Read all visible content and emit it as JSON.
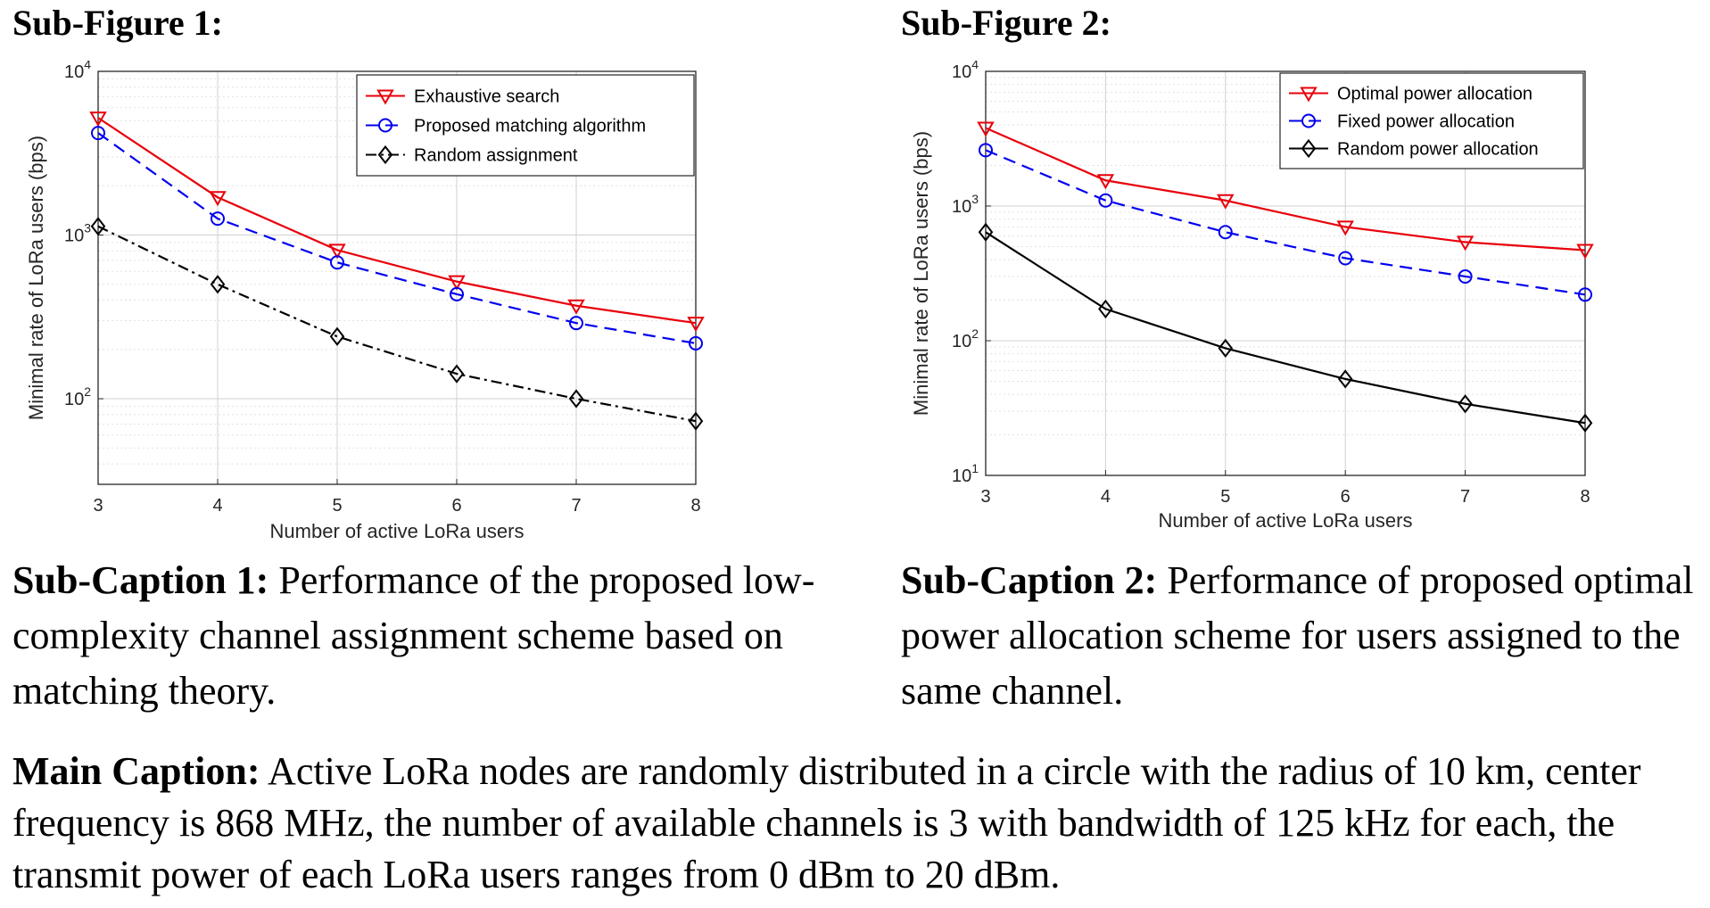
{
  "subfigures": [
    {
      "title": "Sub-Figure 1:"
    },
    {
      "title": "Sub-Figure 2:"
    }
  ],
  "captions": [
    {
      "label": "Sub-Caption 1:",
      "text": " Performance of the proposed low-complexity channel assignment scheme based on matching theory."
    },
    {
      "label": "Sub-Caption 2:",
      "text": " Performance of proposed optimal power allocation scheme for users assigned to the same channel."
    }
  ],
  "main_caption": {
    "label": "Main Caption:",
    "text": " Active LoRa nodes are randomly distributed in a circle with the radius of 10 km, center frequency is 868 MHz, the number of available channels is 3 with bandwidth of 125 kHz for each, the transmit power of each LoRa users ranges from 0 dBm to 20 dBm."
  },
  "chart_data": [
    {
      "type": "line",
      "xlabel": "Number of active LoRa users",
      "ylabel": "Minimal rate of LoRa users (bps)",
      "x": [
        3,
        4,
        5,
        6,
        7,
        8
      ],
      "xlim": [
        3,
        8
      ],
      "ylim": [
        30,
        10000
      ],
      "yscale": "log",
      "grid": true,
      "legend_position": "top-right",
      "series": [
        {
          "name": "Exhaustive search",
          "values": [
            5200,
            1700,
            810,
            520,
            370,
            290
          ],
          "color": "#e8000b",
          "line": "solid",
          "marker": "triangle-down"
        },
        {
          "name": "Proposed matching algorithm",
          "values": [
            4200,
            1260,
            680,
            435,
            290,
            218
          ],
          "color": "#0000ee",
          "line": "dashed",
          "marker": "circle"
        },
        {
          "name": "Random assignment",
          "values": [
            1130,
            500,
            240,
            142,
            100,
            73
          ],
          "color": "#000000",
          "line": "dashdot",
          "marker": "diamond"
        }
      ]
    },
    {
      "type": "line",
      "xlabel": "Number of active LoRa users",
      "ylabel": "Minimal rate of LoRa users (bps)",
      "x": [
        3,
        4,
        5,
        6,
        7,
        8
      ],
      "xlim": [
        3,
        8
      ],
      "ylim": [
        10,
        10000
      ],
      "yscale": "log",
      "grid": true,
      "legend_position": "top-right",
      "series": [
        {
          "name": "Optimal power allocation",
          "values": [
            3800,
            1550,
            1100,
            700,
            540,
            470
          ],
          "color": "#e8000b",
          "line": "solid",
          "marker": "triangle-down"
        },
        {
          "name": "Fixed power allocation",
          "values": [
            2600,
            1100,
            640,
            410,
            300,
            220
          ],
          "color": "#0000ee",
          "line": "dashed",
          "marker": "circle"
        },
        {
          "name": "Random power allocation",
          "values": [
            640,
            172,
            88,
            52,
            34,
            24.5
          ],
          "color": "#000000",
          "line": "solid",
          "marker": "diamond"
        }
      ]
    }
  ]
}
